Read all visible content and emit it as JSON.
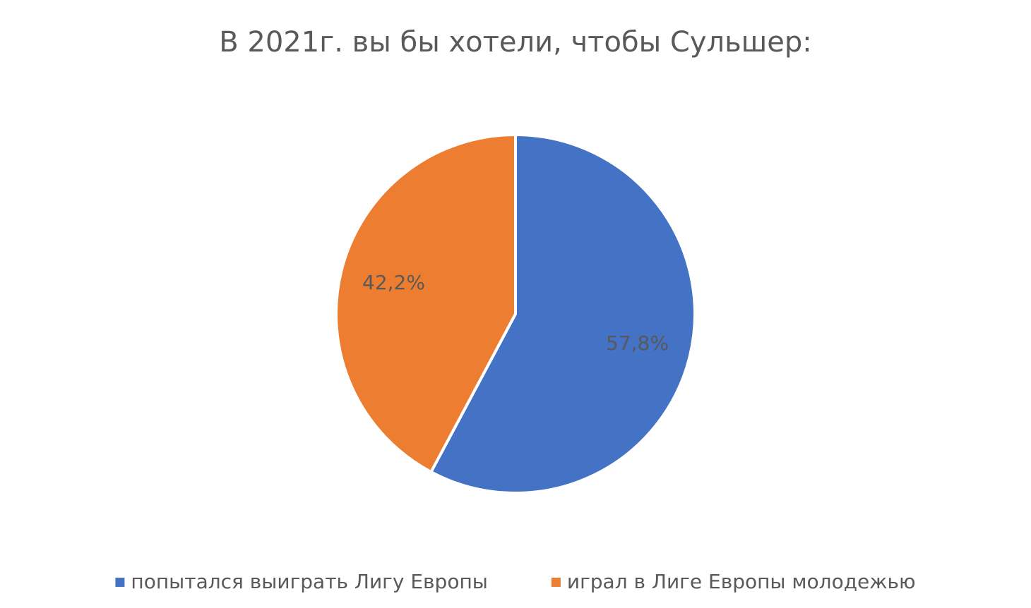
{
  "chart_data": {
    "type": "pie",
    "title": "В 2021г. вы бы хотели, чтобы Сульшер:",
    "categories": [
      "попытался выиграть Лигу Европы",
      "играл в Лиге Европы молодежью"
    ],
    "values": [
      57.8,
      42.2
    ],
    "value_labels": [
      "57,8%",
      "42,2%"
    ],
    "colors": [
      "#4472c4",
      "#ed7d31"
    ],
    "legend": "bottom"
  }
}
